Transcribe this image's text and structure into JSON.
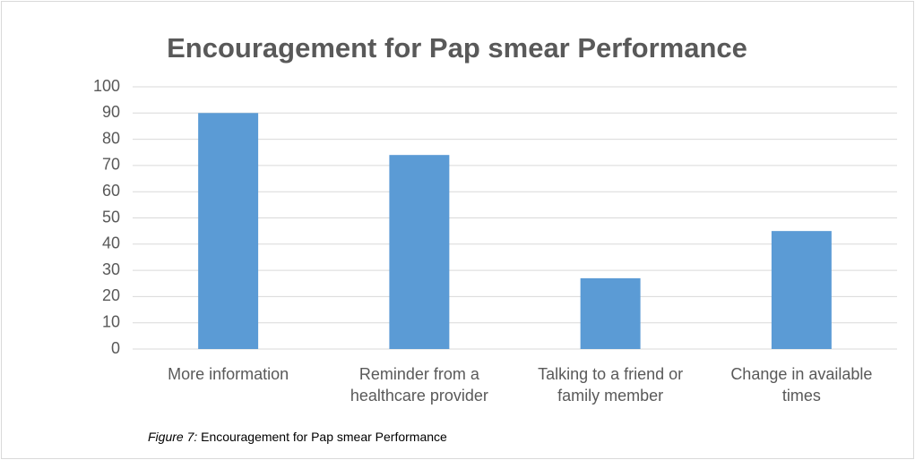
{
  "chart_data": {
    "type": "bar",
    "title": "Encouragement for Pap smear Performance",
    "categories": [
      "More information",
      "Reminder from a healthcare provider",
      "Talking to a friend or family member",
      "Change in available times"
    ],
    "values": [
      90,
      74,
      27,
      45
    ],
    "color": "#5b9bd5",
    "ylim": [
      0,
      100
    ],
    "yticks": [
      0,
      10,
      20,
      30,
      40,
      50,
      60,
      70,
      80,
      90,
      100
    ],
    "grid": true
  },
  "caption": {
    "label": "Figure 7:",
    "text": "Encouragement for Pap smear Performance"
  }
}
